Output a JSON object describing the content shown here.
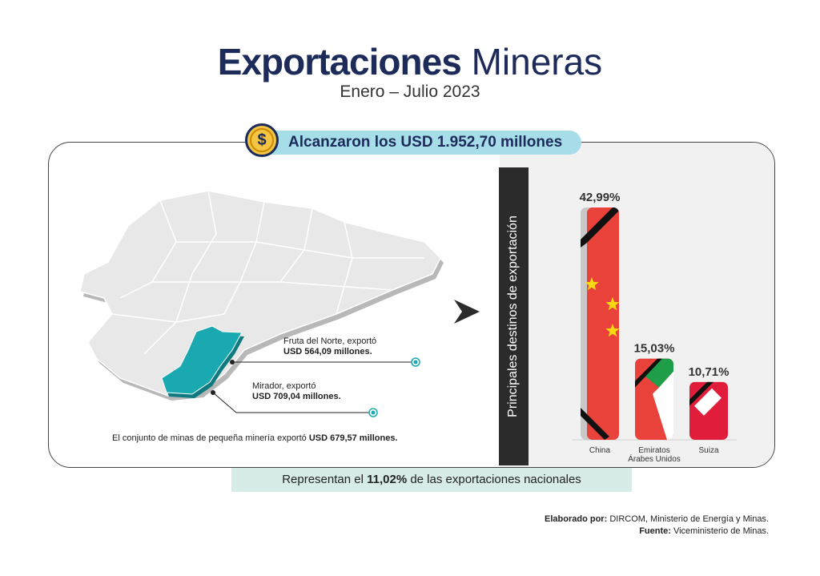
{
  "header": {
    "title_bold": "Exportaciones",
    "title_light": "Mineras",
    "subtitle": "Enero – Julio 2023"
  },
  "banner": {
    "text": "Alcanzaron los USD 1.952,70 millones",
    "icon": "dollar-coin-icon"
  },
  "map": {
    "fruta_line1": "Fruta del Norte, exportó",
    "fruta_line2": "USD 564,09 millones.",
    "mirador_line1": "Mirador, exportó",
    "mirador_line2": "USD 709,04 millones.",
    "pequena_prefix": "El conjunto de minas de pequeña minería exportó ",
    "pequena_value": "USD 679,57 millones.",
    "highlight_color": "#1aa9b0"
  },
  "chart_panel": {
    "vertical_title": "Principales destinos de exportación"
  },
  "chart_data": {
    "type": "bar",
    "categories": [
      "China",
      "Emiratos Árabes Unidos",
      "Suiza"
    ],
    "values": [
      42.99,
      15.03,
      10.71
    ],
    "value_labels": [
      "42,99%",
      "15,03%",
      "10,71%"
    ],
    "category_lines": [
      [
        "China"
      ],
      [
        "Emiratos",
        "Árabes Unidos"
      ],
      [
        "Suiza"
      ]
    ],
    "ylim": [
      0,
      42.99
    ],
    "grid": false
  },
  "footer": {
    "summary_prefix": "Representan el ",
    "summary_value": "11,02%",
    "summary_suffix": " de las exportaciones nacionales",
    "elaborado_label": "Elaborado por:",
    "elaborado_value": " DIRCOM, Ministerio de Energía y Minas.",
    "fuente_label": "Fuente:",
    "fuente_value": " Viceministerio de Minas."
  }
}
